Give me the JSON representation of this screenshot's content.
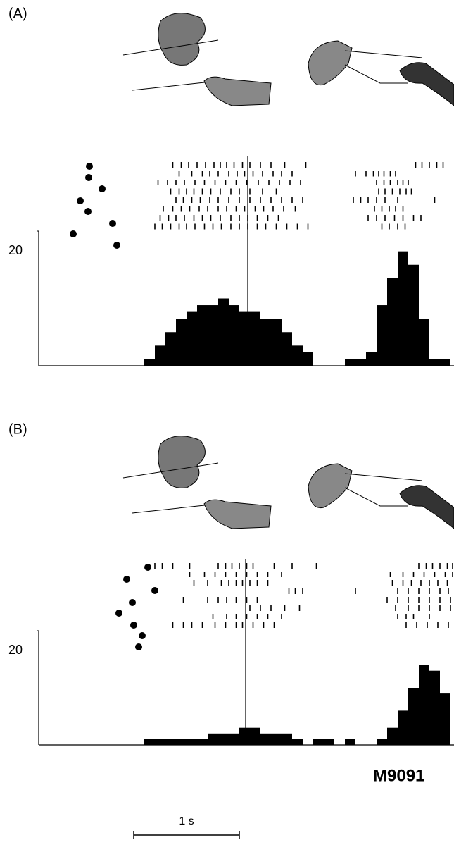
{
  "chart_data": [
    {
      "type": "histogram",
      "title": "(A)",
      "color": "#000000",
      "bins": [
        0,
        0.1,
        0.2,
        0.3,
        0.4,
        0.5,
        0.6,
        0.7,
        0.8,
        0.9,
        1.0,
        1.1,
        1.2,
        1.3,
        1.4,
        1.5,
        1.6,
        1.7,
        1.8,
        1.9,
        2.0,
        2.1,
        2.2,
        2.3,
        2.4,
        2.5,
        2.6,
        2.7,
        2.8,
        2.9,
        3.0,
        3.1,
        3.2,
        3.3,
        3.4,
        3.5,
        3.6,
        3.7,
        3.8,
        3.9
      ],
      "values": [
        0,
        0,
        0,
        0,
        0,
        0,
        0,
        0,
        0,
        0,
        1,
        3,
        5,
        7,
        8,
        9,
        9,
        10,
        9,
        8,
        8,
        7,
        7,
        5,
        3,
        2,
        0,
        0,
        0,
        1,
        1,
        2,
        9,
        13,
        17,
        15,
        7,
        1,
        1
      ],
      "xlim": [
        0,
        3.9
      ],
      "ylim": [
        0,
        20
      ],
      "yticks": [
        20
      ],
      "event_time": 1.98,
      "raster": [
        [
          1.27,
          1.35,
          1.42,
          1.5,
          1.58,
          1.66,
          1.72,
          1.78,
          1.85,
          1.93,
          2.0,
          2.1,
          2.2,
          2.33,
          2.53,
          3.57,
          3.63,
          3.7,
          3.77,
          3.83
        ],
        [
          1.33,
          1.45,
          1.55,
          1.62,
          1.7,
          1.8,
          1.88,
          1.95,
          2.03,
          2.12,
          2.22,
          2.3,
          2.4,
          3.0,
          3.1,
          3.17,
          3.22,
          3.27,
          3.33,
          3.38
        ],
        [
          1.13,
          1.22,
          1.3,
          1.38,
          1.48,
          1.57,
          1.67,
          1.77,
          1.87,
          1.97,
          2.08,
          2.18,
          2.28,
          2.38,
          2.48,
          3.2,
          3.27,
          3.33,
          3.4,
          3.45,
          3.5
        ],
        [
          1.25,
          1.33,
          1.4,
          1.47,
          1.55,
          1.63,
          1.72,
          1.82,
          1.9,
          2.0,
          2.12,
          2.25,
          3.22,
          3.28,
          3.35,
          3.42,
          3.48,
          3.53
        ],
        [
          1.3,
          1.37,
          1.45,
          1.53,
          1.62,
          1.7,
          1.8,
          1.9,
          2.0,
          2.1,
          2.2,
          2.3,
          2.4,
          2.5,
          2.98,
          3.05,
          3.12,
          3.2,
          3.28,
          3.4,
          3.75
        ],
        [
          1.18,
          1.27,
          1.35,
          1.43,
          1.52,
          1.6,
          1.7,
          1.78,
          1.87,
          1.95,
          2.05,
          2.13,
          2.22,
          2.32,
          2.43,
          3.18,
          3.25,
          3.32,
          3.38,
          3.45
        ],
        [
          1.15,
          1.23,
          1.3,
          1.38,
          1.47,
          1.55,
          1.63,
          1.72,
          1.82,
          1.9,
          1.98,
          2.07,
          2.17,
          2.27,
          3.12,
          3.2,
          3.28,
          3.37,
          3.45,
          3.55,
          3.62
        ],
        [
          1.1,
          1.17,
          1.25,
          1.33,
          1.4,
          1.48,
          1.57,
          1.65,
          1.73,
          1.82,
          1.9,
          1.98,
          2.07,
          2.15,
          2.25,
          2.35,
          2.45,
          2.55,
          3.25,
          3.32,
          3.4,
          3.47
        ]
      ]
    },
    {
      "type": "histogram",
      "title": "(B)",
      "color": "#000000",
      "bins": [
        0,
        0.1,
        0.2,
        0.3,
        0.4,
        0.5,
        0.6,
        0.7,
        0.8,
        0.9,
        1.0,
        1.1,
        1.2,
        1.3,
        1.4,
        1.5,
        1.6,
        1.7,
        1.8,
        1.9,
        2.0,
        2.1,
        2.2,
        2.3,
        2.4,
        2.5,
        2.6,
        2.7,
        2.8,
        2.9,
        3.0,
        3.1,
        3.2,
        3.3,
        3.4,
        3.5,
        3.6,
        3.7,
        3.8,
        3.9
      ],
      "values": [
        0,
        0,
        0,
        0,
        0,
        0,
        0,
        0,
        0,
        0,
        1,
        1,
        1,
        1,
        1,
        1,
        2,
        2,
        2,
        3,
        3,
        2,
        2,
        2,
        1,
        0,
        1,
        1,
        0,
        1,
        0,
        0,
        1,
        3,
        6,
        10,
        14,
        13,
        9
      ],
      "xlim": [
        0,
        3.9
      ],
      "ylim": [
        0,
        20
      ],
      "yticks": [
        20
      ],
      "event_time": 1.96,
      "raster": [
        [
          1.1,
          1.17,
          1.27,
          1.43,
          1.7,
          1.77,
          1.83,
          1.9,
          1.97,
          2.03,
          2.23,
          2.4,
          2.63,
          3.6,
          3.67,
          3.73,
          3.8,
          3.87,
          3.92
        ],
        [
          1.43,
          1.57,
          1.67,
          1.77,
          1.87,
          1.97,
          2.07,
          2.17,
          2.3,
          3.33,
          3.45,
          3.55,
          3.65,
          3.75,
          3.85,
          3.92
        ],
        [
          1.47,
          1.6,
          1.73,
          1.8,
          1.87,
          1.93,
          2.0,
          2.07,
          2.17,
          3.35,
          3.45,
          3.53,
          3.62,
          3.7,
          3.78,
          3.87
        ],
        [
          2.37,
          2.43,
          2.5,
          3.0,
          3.4,
          3.5,
          3.6,
          3.7,
          3.8,
          3.88
        ],
        [
          1.37,
          1.6,
          1.7,
          1.78,
          1.87,
          1.97,
          2.07,
          3.3,
          3.4,
          3.5,
          3.6,
          3.7,
          3.8,
          3.9
        ],
        [
          2.0,
          2.1,
          2.2,
          2.33,
          2.47,
          3.38,
          3.5,
          3.6,
          3.7,
          3.8,
          3.9
        ],
        [
          1.65,
          1.78,
          1.87,
          1.97,
          2.07,
          2.17,
          2.3,
          3.4,
          3.48,
          3.55,
          3.7
        ],
        [
          1.27,
          1.37,
          1.45,
          1.55,
          1.67,
          1.77,
          1.87,
          1.93,
          2.03,
          2.13,
          2.23,
          3.48,
          3.58,
          3.68,
          3.78,
          3.88
        ]
      ]
    }
  ],
  "footer": {
    "code": "M9091",
    "scale_label": "1 s"
  }
}
